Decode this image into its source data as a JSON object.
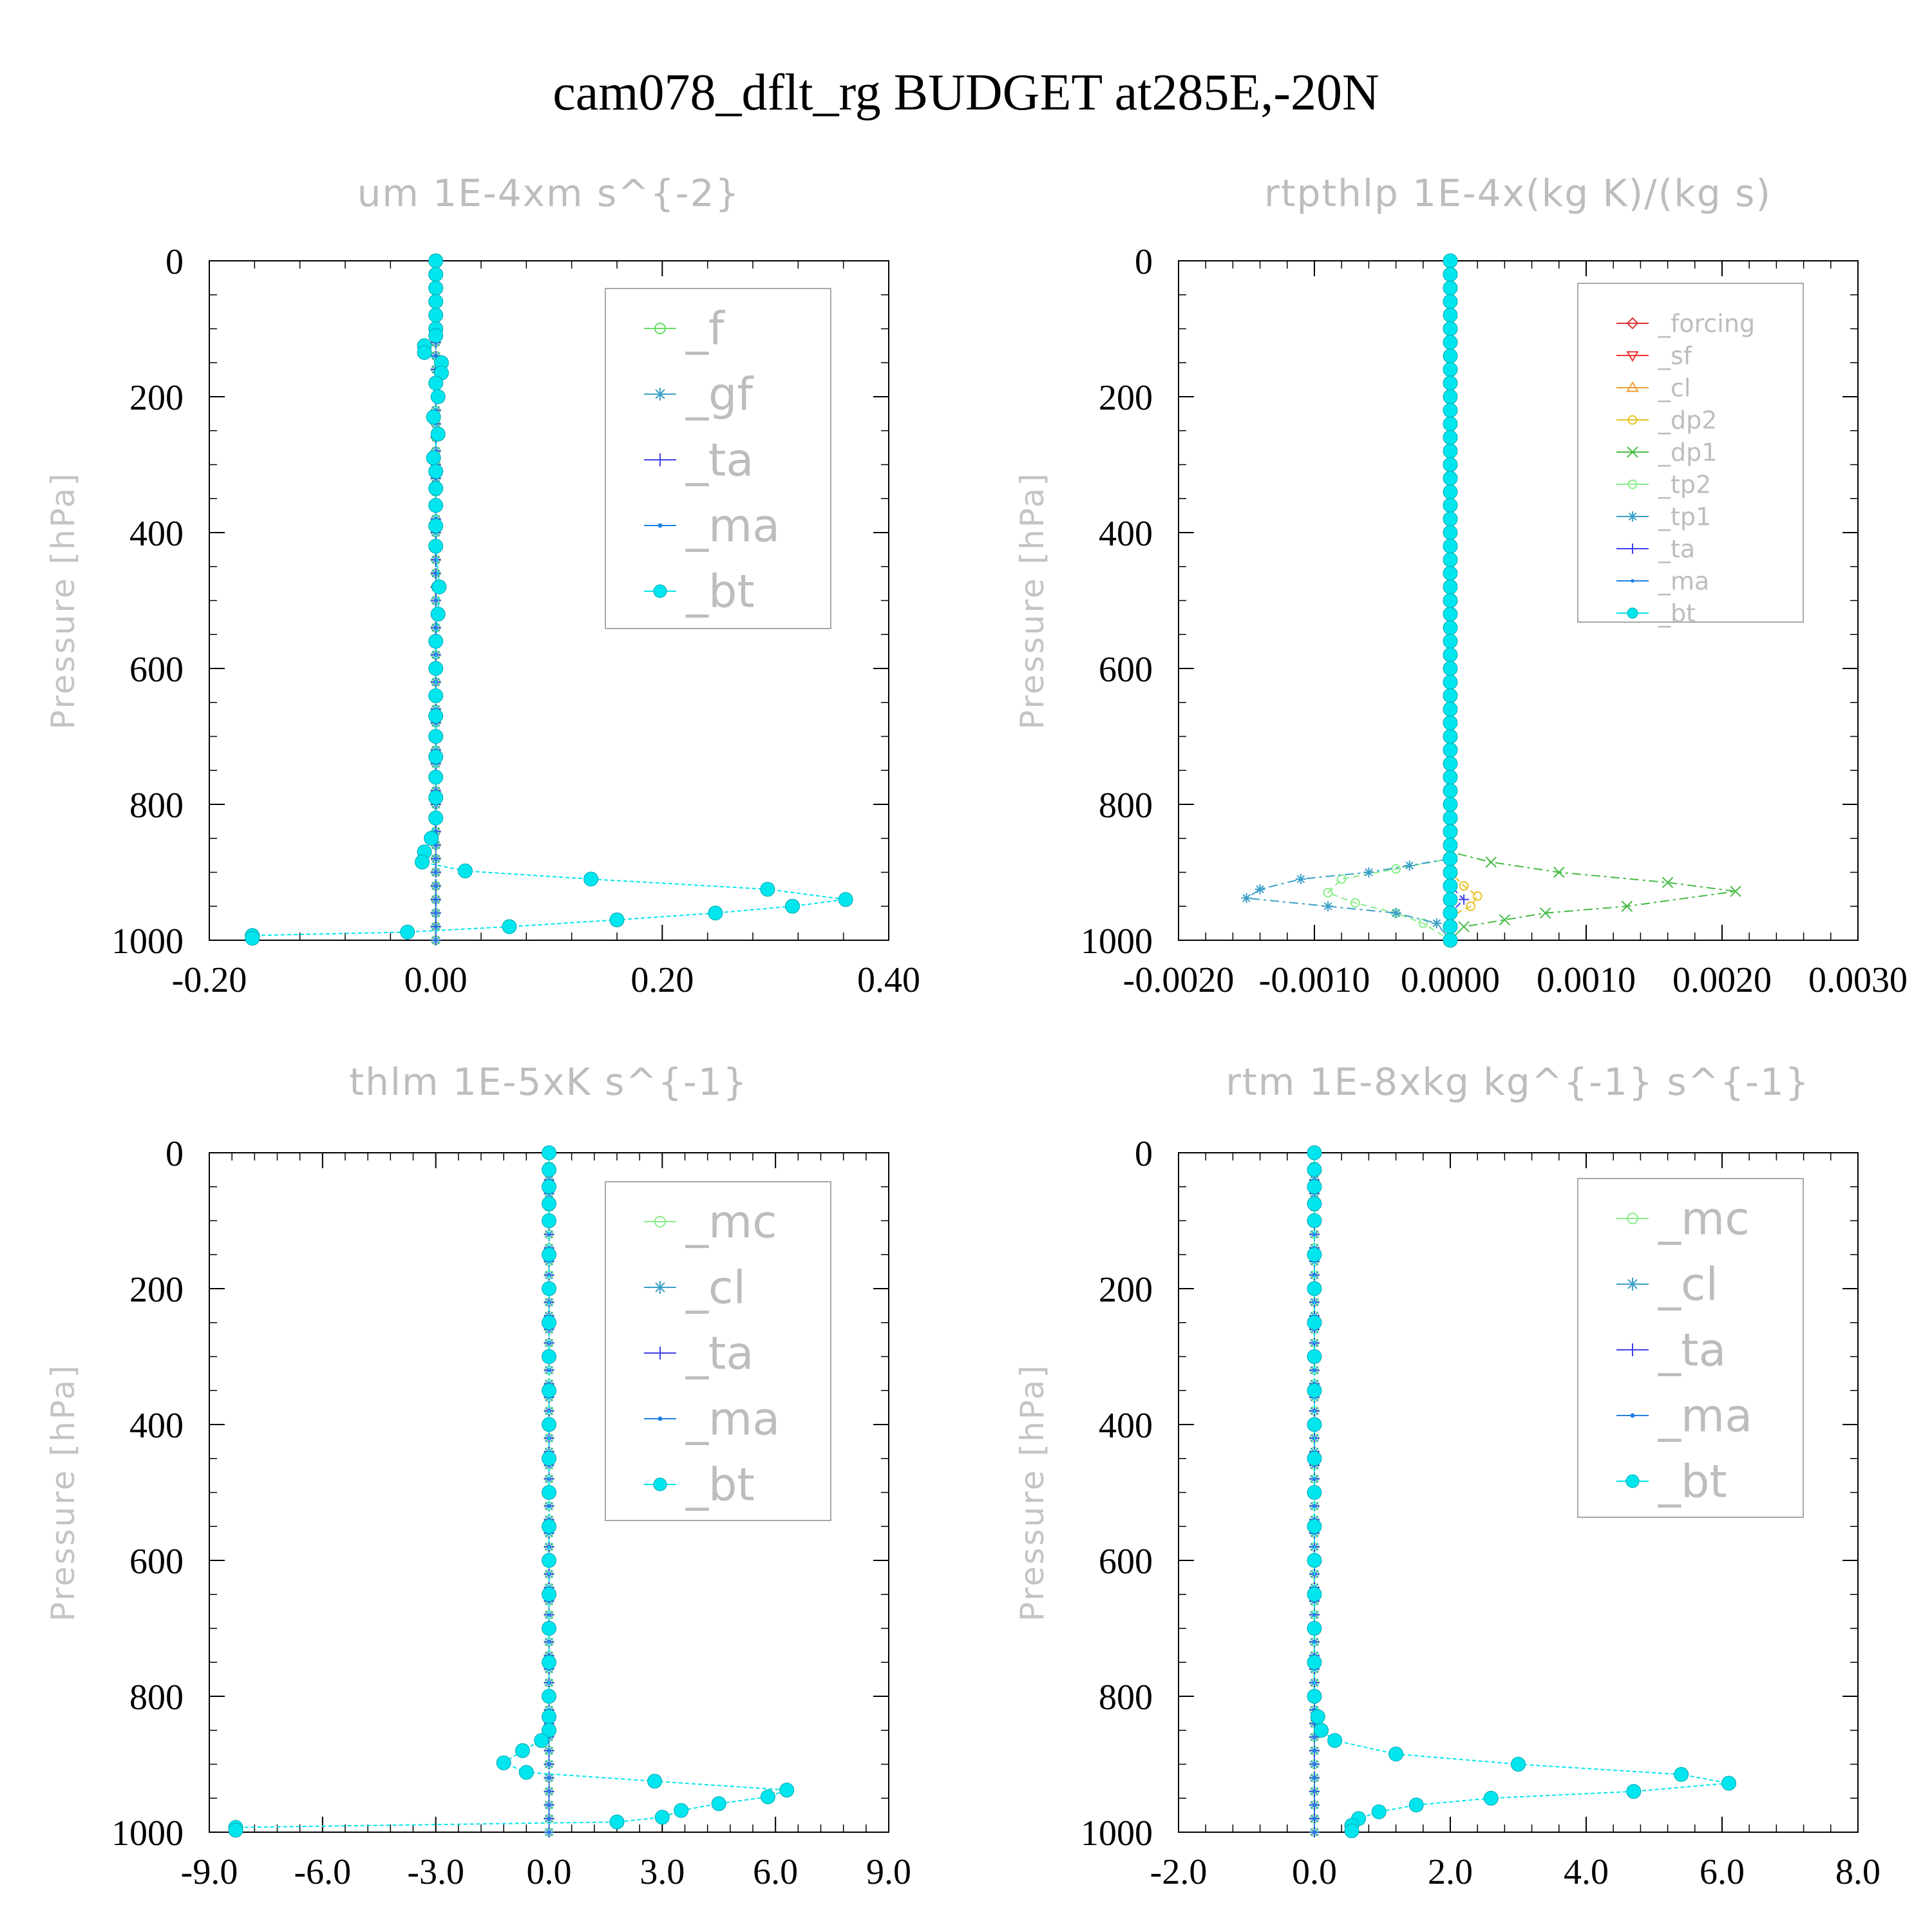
{
  "title": "cam078_dflt_rg  BUDGET at285E,-20N",
  "chart_data": [
    {
      "type": "line",
      "title": "um  1E-4xm s^{-2}",
      "ylabel": "Pressure [hPa]",
      "xlim": [
        -0.2,
        0.4
      ],
      "ylim": [
        1000,
        0
      ],
      "xticks": [
        "-0.20",
        "0.00",
        "0.20",
        "0.40"
      ],
      "yticks": [
        "0",
        "200",
        "400",
        "600",
        "800",
        "1000"
      ],
      "legend_position": "top-right",
      "series": [
        {
          "name": "_f",
          "color": "#66dd66",
          "marker": "circle-open",
          "x": [
            0.0,
            0.0
          ],
          "y": [
            0,
            1000
          ]
        },
        {
          "name": "_gf",
          "color": "#3aa0c8",
          "marker": "asterisk",
          "x": [
            0.0,
            0.0
          ],
          "y": [
            0,
            1000
          ]
        },
        {
          "name": "_ta",
          "color": "#4040ee",
          "marker": "plus",
          "x": [
            0.0,
            0.0
          ],
          "y": [
            0,
            1000
          ]
        },
        {
          "name": "_ma",
          "color": "#2080e0",
          "marker": "dot",
          "x": [
            0.0,
            0.0
          ],
          "y": [
            0,
            1000
          ]
        },
        {
          "name": "_bt",
          "color": "#00e5ee",
          "marker": "filled-circle",
          "x": [
            0.0,
            0.0,
            0.0,
            0.0,
            0.0,
            0.0,
            0.0,
            -0.01,
            -0.01,
            0.005,
            0.005,
            0.0,
            0.002,
            -0.002,
            0.002,
            -0.002,
            0.0,
            0.0,
            0.0,
            0.0,
            0.0,
            0.003,
            0.002,
            0.0,
            0.0,
            0.0,
            0.0,
            0.0,
            0.0,
            0.0,
            0.0,
            0.0,
            -0.004,
            -0.01,
            -0.012,
            0.026,
            0.137,
            0.293,
            0.362,
            0.315,
            0.247,
            0.16,
            0.065,
            -0.025,
            -0.162,
            -0.162
          ],
          "y": [
            0,
            20,
            40,
            60,
            80,
            100,
            110,
            125,
            135,
            150,
            165,
            180,
            200,
            230,
            255,
            290,
            310,
            335,
            360,
            390,
            420,
            480,
            520,
            560,
            600,
            640,
            670,
            700,
            730,
            760,
            790,
            820,
            850,
            870,
            885,
            898,
            910,
            925,
            940,
            950,
            960,
            970,
            980,
            988,
            993,
            997
          ]
        }
      ]
    },
    {
      "type": "line",
      "title": "rtpthlp  1E-4x(kg K)/(kg s)",
      "ylabel": "Pressure [hPa]",
      "xlim": [
        -0.002,
        0.003
      ],
      "ylim": [
        1000,
        0
      ],
      "xticks": [
        "-0.0020",
        "-0.0010",
        "0.0000",
        "0.0010",
        "0.0020",
        "0.0030"
      ],
      "yticks": [
        "0",
        "200",
        "400",
        "600",
        "800",
        "1000"
      ],
      "legend_position": "top-right",
      "series": [
        {
          "name": "_forcing",
          "color": "#dd3333",
          "marker": "diamond",
          "x": [
            0.0,
            0.0
          ],
          "y": [
            0,
            1000
          ]
        },
        {
          "name": "_sf",
          "color": "#ee3333",
          "marker": "triangle-down",
          "x": [
            0.0,
            0.0
          ],
          "y": [
            0,
            1000
          ]
        },
        {
          "name": "_cl",
          "color": "#f0a030",
          "marker": "triangle-up",
          "x": [
            0.0,
            0.0
          ],
          "y": [
            0,
            1000
          ]
        },
        {
          "name": "_dp2",
          "color": "#e8c020",
          "marker": "circle-open",
          "x": [
            0.0,
            0.0,
            0.0001,
            0.0002,
            0.00015,
            0.0,
            0.0
          ],
          "y": [
            0,
            900,
            920,
            935,
            950,
            965,
            1000
          ]
        },
        {
          "name": "_dp1",
          "color": "#44bb44",
          "marker": "x",
          "x": [
            0.0,
            0.0,
            0.0,
            0.0003,
            0.0008,
            0.0016,
            0.0021,
            0.0013,
            0.0007,
            0.0004,
            0.0001,
            0.0
          ],
          "y": [
            0,
            860,
            870,
            885,
            900,
            915,
            928,
            950,
            960,
            970,
            980,
            1000
          ]
        },
        {
          "name": "_tp2",
          "color": "#88ee88",
          "marker": "circle-open",
          "x": [
            0.0,
            0.0,
            -0.0004,
            -0.0008,
            -0.0009,
            -0.0007,
            -0.0004,
            -0.0002,
            0.0
          ],
          "y": [
            0,
            880,
            895,
            910,
            930,
            945,
            960,
            975,
            1000
          ]
        },
        {
          "name": "_tp1",
          "color": "#3aa0c8",
          "marker": "asterisk",
          "x": [
            0.0,
            0.0,
            -0.0003,
            -0.0006,
            -0.0011,
            -0.0014,
            -0.0015,
            -0.0009,
            -0.0004,
            -0.0001,
            0.0
          ],
          "y": [
            0,
            880,
            890,
            900,
            910,
            925,
            938,
            950,
            960,
            975,
            1000
          ]
        },
        {
          "name": "_ta",
          "color": "#4040ee",
          "marker": "plus",
          "x": [
            0.0,
            0.0,
            0.0001,
            0.0,
            0.0
          ],
          "y": [
            0,
            920,
            940,
            960,
            1000
          ]
        },
        {
          "name": "_ma",
          "color": "#2080e0",
          "marker": "dot",
          "x": [
            0.0,
            0.0
          ],
          "y": [
            0,
            1000
          ]
        },
        {
          "name": "_bt",
          "color": "#00e5ee",
          "marker": "filled-circle",
          "x": [
            0.0,
            0.0
          ],
          "y": [
            0,
            1000
          ]
        }
      ]
    },
    {
      "type": "line",
      "title": "thlm  1E-5xK s^{-1}",
      "ylabel": "Pressure [hPa]",
      "xlim": [
        -9.0,
        9.0
      ],
      "ylim": [
        1000,
        0
      ],
      "xticks": [
        "-9.0",
        "-6.0",
        "-3.0",
        "0.0",
        "3.0",
        "6.0",
        "9.0"
      ],
      "yticks": [
        "0",
        "200",
        "400",
        "600",
        "800",
        "1000"
      ],
      "legend_position": "top-right",
      "series": [
        {
          "name": "_mc",
          "color": "#88ee88",
          "marker": "circle-open",
          "x": [
            0.0,
            0.0
          ],
          "y": [
            0,
            1000
          ]
        },
        {
          "name": "_cl",
          "color": "#3aa0c8",
          "marker": "asterisk",
          "x": [
            0.0,
            0.0
          ],
          "y": [
            0,
            1000
          ]
        },
        {
          "name": "_ta",
          "color": "#4040ee",
          "marker": "plus",
          "x": [
            0.0,
            0.0
          ],
          "y": [
            0,
            1000
          ]
        },
        {
          "name": "_ma",
          "color": "#2080e0",
          "marker": "dot",
          "x": [
            0.0,
            0.0
          ],
          "y": [
            0,
            1000
          ]
        },
        {
          "name": "_bt",
          "color": "#00e5ee",
          "marker": "filled-circle",
          "x": [
            0.0,
            0.0,
            0.0,
            0.0,
            0.0,
            0.0,
            0.0,
            0.0,
            0.0,
            0.0,
            0.0,
            0.0,
            0.0,
            0.0,
            0.0,
            0.0,
            0.0,
            0.0,
            0.0,
            0.0,
            0.0,
            -0.2,
            -0.7,
            -1.2,
            -0.6,
            2.8,
            6.3,
            5.8,
            4.5,
            3.5,
            3.0,
            1.8,
            -8.3,
            -8.3
          ],
          "y": [
            0,
            25,
            50,
            75,
            100,
            150,
            200,
            250,
            300,
            350,
            400,
            450,
            500,
            550,
            600,
            650,
            700,
            750,
            800,
            830,
            850,
            865,
            880,
            898,
            912,
            925,
            938,
            948,
            958,
            968,
            978,
            985,
            993,
            997
          ]
        }
      ]
    },
    {
      "type": "line",
      "title": "rtm  1E-8xkg kg^{-1} s^{-1}",
      "ylabel": "Pressure [hPa]",
      "xlim": [
        -2.0,
        8.0
      ],
      "ylim": [
        1000,
        0
      ],
      "xticks": [
        "-2.0",
        "0.0",
        "2.0",
        "4.0",
        "6.0",
        "8.0"
      ],
      "yticks": [
        "0",
        "200",
        "400",
        "600",
        "800",
        "1000"
      ],
      "legend_position": "top-right",
      "series": [
        {
          "name": "_mc",
          "color": "#88ee88",
          "marker": "circle-open",
          "x": [
            0.0,
            0.0
          ],
          "y": [
            0,
            1000
          ]
        },
        {
          "name": "_cl",
          "color": "#3aa0c8",
          "marker": "asterisk",
          "x": [
            0.0,
            0.0
          ],
          "y": [
            0,
            1000
          ]
        },
        {
          "name": "_ta",
          "color": "#4040ee",
          "marker": "plus",
          "x": [
            0.0,
            0.0
          ],
          "y": [
            0,
            1000
          ]
        },
        {
          "name": "_ma",
          "color": "#2080e0",
          "marker": "dot",
          "x": [
            0.0,
            0.0
          ],
          "y": [
            0,
            1000
          ]
        },
        {
          "name": "_bt",
          "color": "#00e5ee",
          "marker": "filled-circle",
          "x": [
            0.0,
            0.0,
            0.0,
            0.0,
            0.0,
            0.0,
            0.0,
            0.0,
            0.0,
            0.0,
            0.0,
            0.0,
            0.0,
            0.0,
            0.0,
            0.0,
            0.0,
            0.0,
            0.0,
            0.05,
            0.1,
            0.3,
            1.2,
            3.0,
            5.4,
            6.1,
            4.7,
            2.6,
            1.5,
            0.95,
            0.65,
            0.55,
            0.55
          ],
          "y": [
            0,
            25,
            50,
            75,
            100,
            150,
            200,
            250,
            300,
            350,
            400,
            450,
            500,
            550,
            600,
            650,
            700,
            750,
            800,
            830,
            850,
            865,
            885,
            900,
            915,
            928,
            940,
            950,
            960,
            970,
            980,
            990,
            998
          ]
        }
      ]
    }
  ]
}
